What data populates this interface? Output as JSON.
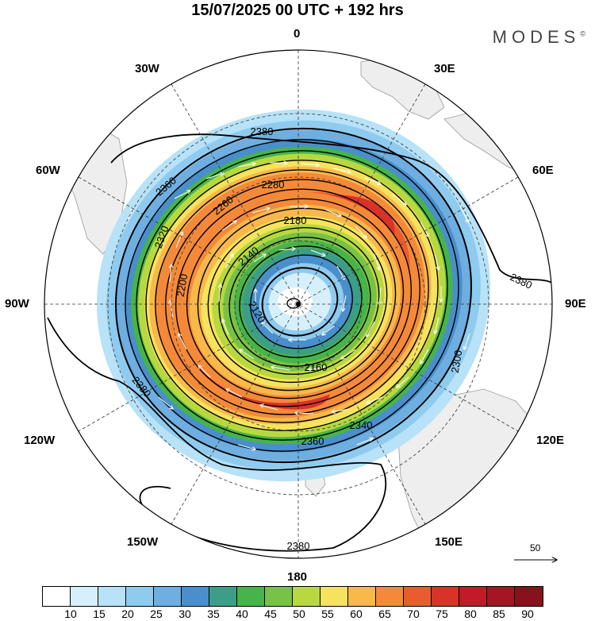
{
  "title": "15/07/2025  00 UTC  + 192 hrs",
  "brand": "MODES",
  "brand_mark": "©",
  "longitude_labels": {
    "top": "0",
    "bottom": "180",
    "left": "90W",
    "right": "90E",
    "w30": "30W",
    "e30": "30E",
    "w60": "60W",
    "e60": "60E",
    "w120": "120W",
    "e120": "120E",
    "w150": "150W",
    "e150": "150E"
  },
  "contour_labels": [
    "2380",
    "2360",
    "2280",
    "2260",
    "2320",
    "2180",
    "2140",
    "2120",
    "2200",
    "2160",
    "2300",
    "2340",
    "2360",
    "2380",
    "2380",
    "2380"
  ],
  "reference_vector": {
    "value": "50",
    "icon": "arrow-right-icon"
  },
  "colorbar": {
    "colors": [
      "#ffffff",
      "#d6f0fb",
      "#b7e2f7",
      "#8fcbef",
      "#6eaee0",
      "#4a8fcb",
      "#3c9e86",
      "#47b449",
      "#78c246",
      "#b7d93f",
      "#f5e35d",
      "#f8b84a",
      "#f48a39",
      "#e95c2d",
      "#d93228",
      "#c11b27",
      "#a51524",
      "#87121c"
    ],
    "ticks": [
      "10",
      "15",
      "20",
      "25",
      "30",
      "35",
      "40",
      "45",
      "50",
      "55",
      "60",
      "65",
      "70",
      "75",
      "80",
      "85",
      "90"
    ]
  },
  "map": {
    "projection": "south-polar-stereographic",
    "field": "wind speed and geopotential height"
  }
}
